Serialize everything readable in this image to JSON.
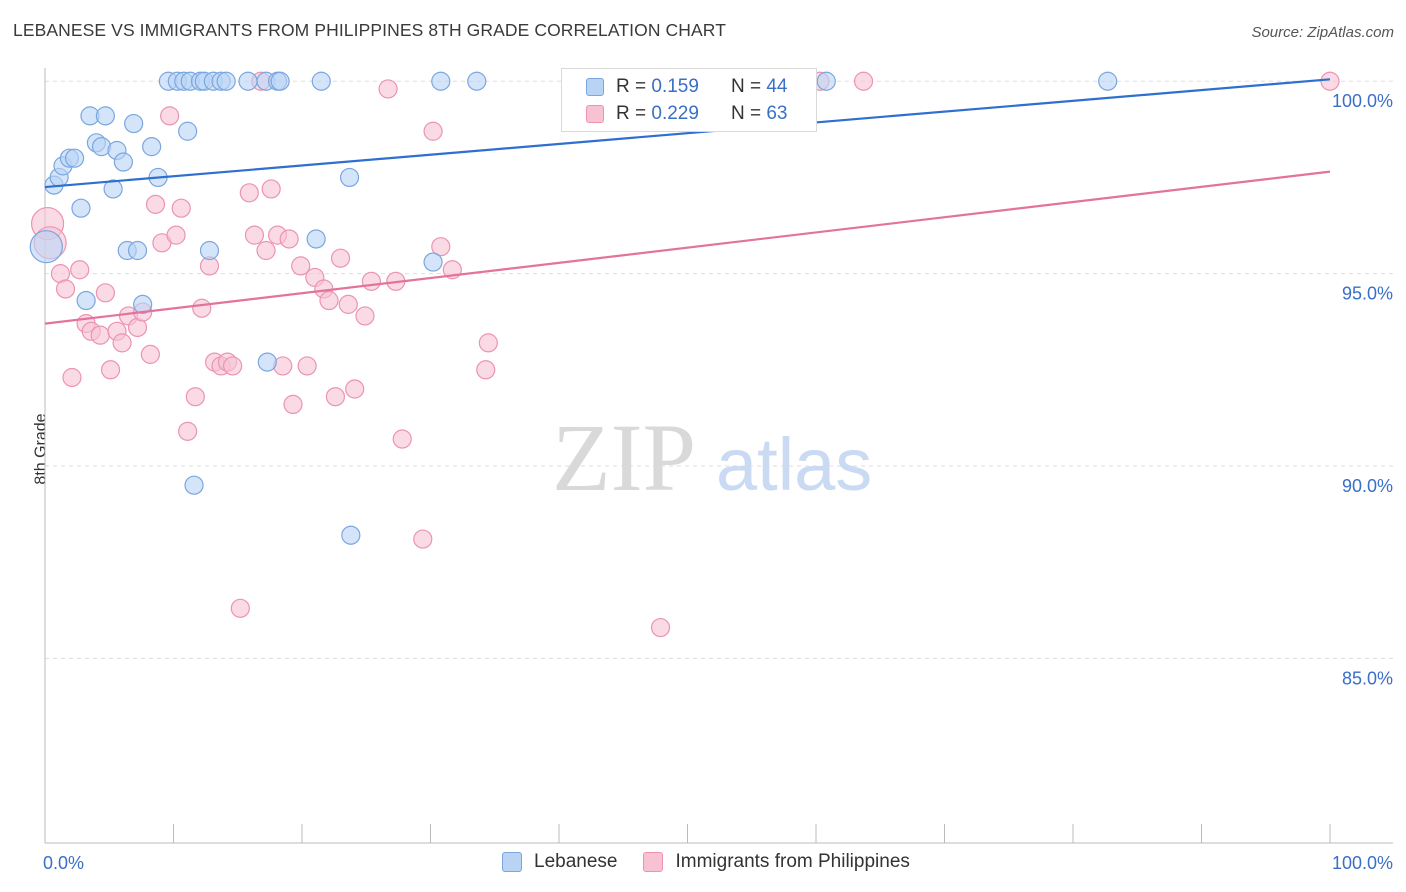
{
  "title": "LEBANESE VS IMMIGRANTS FROM PHILIPPINES 8TH GRADE CORRELATION CHART",
  "source": "Source: ZipAtlas.com",
  "watermark": {
    "zip": "ZIP",
    "atlas": "atlas"
  },
  "colors": {
    "blue_fill": "#b9d3f5",
    "blue_stroke": "#7aa6e0",
    "blue_line": "#2e6fcf",
    "pink_fill": "#f7c3d3",
    "pink_stroke": "#ec93b1",
    "pink_line": "#e3739c",
    "axis_label": "#3a6fc7",
    "grid": "#dddddd"
  },
  "stats": [
    {
      "r_label": "R = ",
      "r_value": "0.159",
      "n_label": "N = ",
      "n_value": "44"
    },
    {
      "r_label": "R = ",
      "r_value": "0.229",
      "n_label": "N = ",
      "n_value": "63"
    }
  ],
  "legend": [
    "Lebanese",
    "Immigrants from Philippines"
  ],
  "chart_data": {
    "type": "scatter",
    "title": "LEBANESE VS IMMIGRANTS FROM PHILIPPINES 8TH GRADE CORRELATION CHART",
    "xlabel": "",
    "ylabel": "8th Grade",
    "xlim": [
      0,
      100
    ],
    "ylim": [
      80.2,
      100.5
    ],
    "x_tick_labels": [
      "0.0%",
      "100.0%"
    ],
    "y_ticks": [
      100,
      95,
      90,
      85
    ],
    "y_tick_labels": [
      "100.0%",
      "95.0%",
      "90.0%",
      "85.0%"
    ],
    "grid": true,
    "series": [
      {
        "name": "Lebanese",
        "trend": {
          "x": [
            0,
            100
          ],
          "y": [
            97.25,
            100.05
          ]
        },
        "points": [
          [
            0.1,
            95.7
          ],
          [
            0.7,
            97.3
          ],
          [
            1.1,
            97.5
          ],
          [
            1.4,
            97.8
          ],
          [
            1.9,
            98.0
          ],
          [
            2.3,
            98.0
          ],
          [
            2.8,
            96.7
          ],
          [
            3.2,
            94.3
          ],
          [
            3.5,
            99.1
          ],
          [
            4.0,
            98.4
          ],
          [
            4.4,
            98.3
          ],
          [
            4.7,
            99.1
          ],
          [
            5.3,
            97.2
          ],
          [
            5.6,
            98.2
          ],
          [
            6.1,
            97.9
          ],
          [
            6.4,
            95.6
          ],
          [
            6.9,
            98.9
          ],
          [
            7.2,
            95.6
          ],
          [
            7.6,
            94.2
          ],
          [
            8.3,
            98.3
          ],
          [
            8.8,
            97.5
          ],
          [
            9.6,
            100.0
          ],
          [
            10.3,
            100.0
          ],
          [
            10.8,
            100.0
          ],
          [
            11.3,
            100.0
          ],
          [
            11.1,
            98.7
          ],
          [
            11.6,
            89.5
          ],
          [
            12.1,
            100.0
          ],
          [
            12.4,
            100.0
          ],
          [
            13.1,
            100.0
          ],
          [
            12.8,
            95.6
          ],
          [
            13.7,
            100.0
          ],
          [
            14.1,
            100.0
          ],
          [
            15.8,
            100.0
          ],
          [
            17.2,
            100.0
          ],
          [
            17.3,
            92.7
          ],
          [
            18.1,
            100.0
          ],
          [
            18.3,
            100.0
          ],
          [
            21.1,
            95.9
          ],
          [
            21.5,
            100.0
          ],
          [
            23.7,
            97.5
          ],
          [
            23.8,
            88.2
          ],
          [
            30.2,
            95.3
          ],
          [
            30.8,
            100.0
          ],
          [
            33.6,
            100.0
          ],
          [
            60.8,
            100.0
          ],
          [
            82.7,
            100.0
          ]
        ]
      },
      {
        "name": "Immigrants from Philippines",
        "trend": {
          "x": [
            0,
            100
          ],
          "y": [
            93.7,
            97.65
          ]
        },
        "points": [
          [
            0.2,
            96.3
          ],
          [
            0.4,
            95.8
          ],
          [
            1.2,
            95.0
          ],
          [
            1.6,
            94.6
          ],
          [
            2.1,
            92.3
          ],
          [
            2.7,
            95.1
          ],
          [
            3.2,
            93.7
          ],
          [
            3.6,
            93.5
          ],
          [
            4.3,
            93.4
          ],
          [
            4.7,
            94.5
          ],
          [
            5.1,
            92.5
          ],
          [
            5.6,
            93.5
          ],
          [
            6.0,
            93.2
          ],
          [
            6.5,
            93.9
          ],
          [
            7.2,
            93.6
          ],
          [
            7.6,
            94.0
          ],
          [
            8.2,
            92.9
          ],
          [
            8.6,
            96.8
          ],
          [
            9.1,
            95.8
          ],
          [
            9.7,
            99.1
          ],
          [
            10.2,
            96.0
          ],
          [
            10.6,
            96.7
          ],
          [
            11.1,
            90.9
          ],
          [
            11.7,
            91.8
          ],
          [
            12.2,
            94.1
          ],
          [
            12.8,
            95.2
          ],
          [
            13.2,
            92.7
          ],
          [
            13.7,
            92.6
          ],
          [
            14.2,
            92.7
          ],
          [
            14.6,
            92.6
          ],
          [
            15.2,
            86.3
          ],
          [
            15.9,
            97.1
          ],
          [
            16.3,
            96.0
          ],
          [
            16.8,
            100.0
          ],
          [
            17.2,
            95.6
          ],
          [
            17.6,
            97.2
          ],
          [
            18.1,
            96.0
          ],
          [
            18.5,
            92.6
          ],
          [
            19.0,
            95.9
          ],
          [
            19.3,
            91.6
          ],
          [
            19.9,
            95.2
          ],
          [
            20.4,
            92.6
          ],
          [
            21.0,
            94.9
          ],
          [
            21.7,
            94.6
          ],
          [
            22.1,
            94.3
          ],
          [
            22.6,
            91.8
          ],
          [
            23.0,
            95.4
          ],
          [
            23.6,
            94.2
          ],
          [
            24.1,
            92.0
          ],
          [
            24.9,
            93.9
          ],
          [
            25.4,
            94.8
          ],
          [
            26.7,
            99.8
          ],
          [
            27.3,
            94.8
          ],
          [
            27.8,
            90.7
          ],
          [
            29.4,
            88.1
          ],
          [
            30.2,
            98.7
          ],
          [
            30.8,
            95.7
          ],
          [
            31.7,
            95.1
          ],
          [
            34.5,
            93.2
          ],
          [
            34.3,
            92.5
          ],
          [
            47.9,
            85.8
          ],
          [
            60.3,
            100.0
          ],
          [
            63.7,
            100.0
          ],
          [
            100.0,
            100.0
          ]
        ]
      }
    ]
  }
}
